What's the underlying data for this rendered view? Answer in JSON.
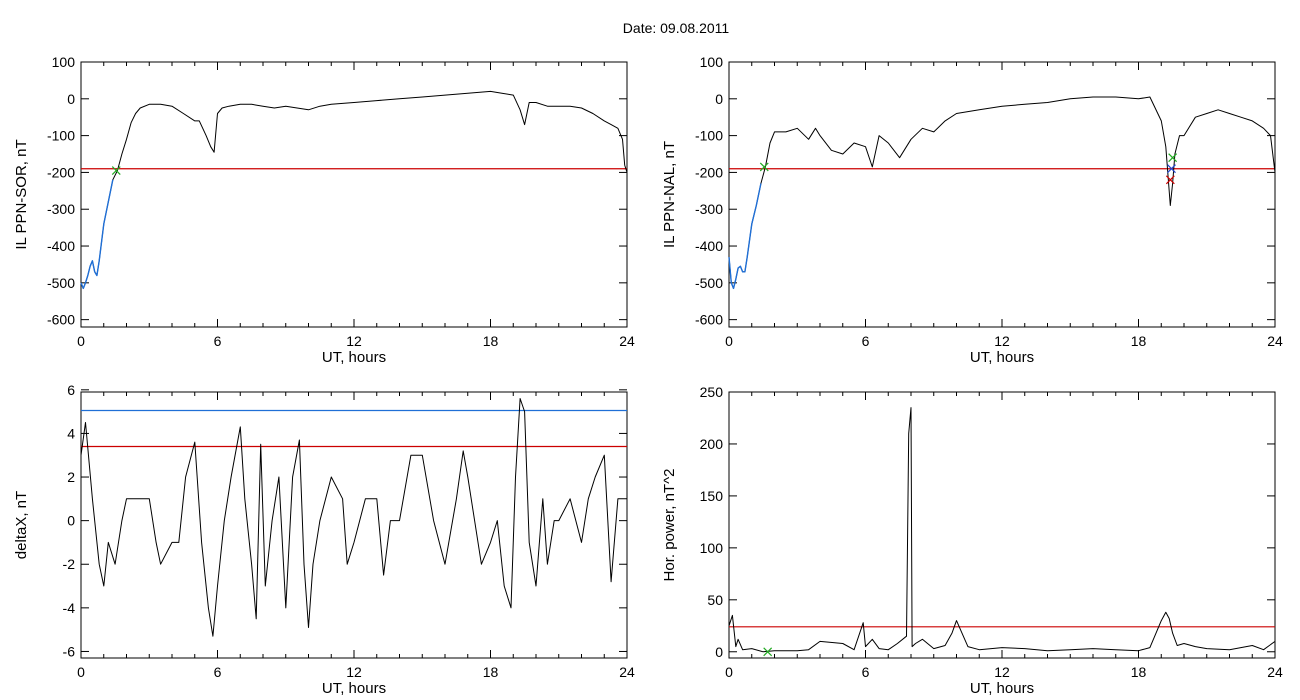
{
  "figure_title": "Date:  09.08.2011",
  "colors": {
    "axis": "#000000",
    "data": "#000000",
    "threshold_red": "#cc0000",
    "threshold_blue": "#1f6fd6",
    "marker_green": "#22aa22",
    "marker_red": "#cc0000",
    "marker_blue": "#2244cc"
  },
  "chart_data": [
    {
      "type": "line",
      "panel": "top-left",
      "xlabel": "UT, hours",
      "ylabel": "IL PPN-SOR, nT",
      "xlim": [
        0,
        24
      ],
      "ylim": [
        -620,
        100
      ],
      "xticks": [
        0,
        6,
        12,
        18,
        24
      ],
      "yticks": [
        100,
        0,
        -100,
        -200,
        -300,
        -400,
        -500,
        -600
      ],
      "series": [
        {
          "x": [
            0,
            0.1,
            0.2,
            0.3,
            0.4,
            0.5,
            0.6,
            0.7,
            0.8,
            1.0,
            1.2,
            1.4,
            1.6,
            1.8,
            2.0,
            2.2,
            2.4,
            2.6,
            3,
            3.5,
            4,
            4.5,
            5,
            5.2,
            5.5,
            5.7,
            5.85,
            6,
            6.2,
            6.5,
            7,
            7.5,
            8,
            8.5,
            9,
            9.5,
            10,
            10.5,
            11,
            12,
            13,
            14,
            15,
            16,
            17,
            18,
            18.5,
            19,
            19.3,
            19.5,
            19.7,
            20,
            20.5,
            21,
            21.5,
            22,
            22.5,
            23,
            23.3,
            23.6,
            23.8,
            23.9,
            24
          ],
          "y": [
            -500,
            -515,
            -500,
            -480,
            -455,
            -440,
            -470,
            -480,
            -440,
            -340,
            -280,
            -220,
            -195,
            -150,
            -110,
            -65,
            -40,
            -25,
            -15,
            -15,
            -20,
            -40,
            -60,
            -60,
            -100,
            -130,
            -145,
            -40,
            -25,
            -20,
            -15,
            -15,
            -20,
            -25,
            -20,
            -25,
            -30,
            -20,
            -15,
            -10,
            -5,
            0,
            5,
            10,
            15,
            20,
            15,
            10,
            -30,
            -70,
            -10,
            -10,
            -20,
            -20,
            -20,
            -25,
            -40,
            -60,
            -70,
            -80,
            -110,
            -180,
            -200
          ]
        },
        {
          "name": "blue-segment",
          "x": [
            0,
            0.1,
            0.2,
            0.3,
            0.4,
            0.5,
            0.6,
            0.7,
            0.8,
            1.0,
            1.2,
            1.4
          ],
          "y": [
            -500,
            -515,
            -500,
            -480,
            -455,
            -440,
            -470,
            -480,
            -440,
            -340,
            -280,
            -220
          ]
        }
      ],
      "threshold_red": -190,
      "markers": [
        {
          "x": 1.55,
          "y": -195,
          "color": "green"
        }
      ]
    },
    {
      "type": "line",
      "panel": "top-right",
      "xlabel": "UT, hours",
      "ylabel": "IL PPN-NAL, nT",
      "xlim": [
        0,
        24
      ],
      "ylim": [
        -620,
        100
      ],
      "xticks": [
        0,
        6,
        12,
        18,
        24
      ],
      "yticks": [
        100,
        0,
        -100,
        -200,
        -300,
        -400,
        -500,
        -600
      ],
      "series": [
        {
          "x": [
            0,
            0.1,
            0.2,
            0.3,
            0.4,
            0.5,
            0.6,
            0.7,
            0.8,
            1.0,
            1.2,
            1.4,
            1.6,
            1.8,
            2.0,
            2.5,
            3,
            3.5,
            3.8,
            4,
            4.5,
            5,
            5.5,
            6,
            6.3,
            6.6,
            7,
            7.5,
            8,
            8.5,
            9,
            9.5,
            10,
            11,
            12,
            13,
            14,
            15,
            16,
            17,
            18,
            18.5,
            19,
            19.2,
            19.4,
            19.5,
            19.6,
            19.8,
            20,
            20.5,
            21,
            21.5,
            22,
            22.5,
            23,
            23.5,
            23.8,
            24
          ],
          "y": [
            -430,
            -500,
            -515,
            -490,
            -460,
            -455,
            -470,
            -470,
            -430,
            -340,
            -290,
            -230,
            -185,
            -120,
            -90,
            -90,
            -80,
            -110,
            -80,
            -100,
            -140,
            -150,
            -120,
            -130,
            -185,
            -100,
            -120,
            -160,
            -110,
            -80,
            -90,
            -60,
            -40,
            -30,
            -20,
            -15,
            -10,
            0,
            5,
            5,
            0,
            5,
            -60,
            -130,
            -290,
            -230,
            -150,
            -100,
            -100,
            -50,
            -40,
            -30,
            -40,
            -50,
            -60,
            -80,
            -100,
            -200
          ]
        },
        {
          "name": "blue-segment",
          "x": [
            0,
            0.1,
            0.2,
            0.3,
            0.4,
            0.5,
            0.6,
            0.7,
            0.8,
            1.0,
            1.2,
            1.4
          ],
          "y": [
            -430,
            -500,
            -515,
            -490,
            -460,
            -455,
            -470,
            -470,
            -430,
            -340,
            -290,
            -230
          ]
        }
      ],
      "threshold_red": -190,
      "markers": [
        {
          "x": 1.55,
          "y": -185,
          "color": "green"
        },
        {
          "x": 19.5,
          "y": -160,
          "color": "green"
        },
        {
          "x": 19.4,
          "y": -220,
          "color": "red"
        },
        {
          "x": 19.45,
          "y": -190,
          "color": "blue"
        }
      ]
    },
    {
      "type": "line",
      "panel": "bottom-left",
      "xlabel": "UT, hours",
      "ylabel": "deltaX, nT",
      "xlim": [
        0,
        24
      ],
      "ylim": [
        -6.3,
        5.9
      ],
      "xticks": [
        0,
        6,
        12,
        18,
        24
      ],
      "yticks": [
        6,
        4,
        2,
        0,
        -2,
        -4,
        -6
      ],
      "series": [
        {
          "x": [
            0,
            0.2,
            0.5,
            0.8,
            1.0,
            1.2,
            1.5,
            1.8,
            2.0,
            2.5,
            3,
            3.3,
            3.5,
            4,
            4.3,
            4.6,
            5,
            5.3,
            5.6,
            5.8,
            6,
            6.3,
            6.6,
            7,
            7.2,
            7.5,
            7.7,
            7.9,
            8.1,
            8.4,
            8.7,
            9,
            9.3,
            9.6,
            9.8,
            10,
            10.2,
            10.5,
            11,
            11.5,
            11.7,
            12,
            12.5,
            13,
            13.3,
            13.6,
            14,
            14.5,
            15,
            15.5,
            16,
            16.5,
            16.8,
            17,
            17.3,
            17.6,
            18,
            18.3,
            18.6,
            18.9,
            19.1,
            19.3,
            19.5,
            19.7,
            20,
            20.3,
            20.5,
            20.8,
            21,
            21.5,
            22,
            22.3,
            22.6,
            23,
            23.3,
            23.6,
            24
          ],
          "y": [
            3,
            4.5,
            1,
            -2,
            -3,
            -1,
            -2,
            0,
            1,
            1,
            1,
            -1,
            -2,
            -1,
            -1,
            2,
            3.6,
            -1,
            -4,
            -5.3,
            -3,
            0,
            2,
            4.3,
            1,
            -2,
            -4.5,
            3.5,
            -3,
            0,
            2,
            -4,
            2,
            3.7,
            -2,
            -4.9,
            -2,
            0,
            2,
            1,
            -2,
            -1,
            1,
            1,
            -2.5,
            0,
            0,
            3,
            3,
            0,
            -2,
            1,
            3.2,
            2,
            0,
            -2,
            -1,
            0,
            -3,
            -4,
            2,
            5.6,
            5,
            -1,
            -3,
            1,
            -2,
            0,
            0,
            1,
            -1,
            1,
            2,
            3,
            -2.8,
            1,
            1
          ]
        }
      ],
      "threshold_red": 3.4,
      "threshold_blue": 5.05
    },
    {
      "type": "line",
      "panel": "bottom-right",
      "xlabel": "UT, hours",
      "ylabel": "Hor. power, nT^2",
      "xlim": [
        0,
        24
      ],
      "ylim": [
        -6,
        250
      ],
      "xticks": [
        0,
        6,
        12,
        18,
        24
      ],
      "yticks": [
        250,
        200,
        150,
        100,
        50,
        0
      ],
      "series": [
        {
          "x": [
            0,
            0.15,
            0.3,
            0.4,
            0.6,
            1,
            1.5,
            2,
            3,
            3.5,
            4,
            5,
            5.5,
            5.9,
            6,
            6.3,
            6.6,
            7,
            7.4,
            7.8,
            7.9,
            8,
            8.05,
            8.2,
            8.5,
            9,
            9.5,
            9.8,
            10,
            10.5,
            11,
            12,
            13,
            14,
            15,
            16,
            17,
            18,
            18.5,
            19,
            19.2,
            19.35,
            19.5,
            19.7,
            20,
            20.5,
            21,
            22,
            23,
            23.5,
            24
          ],
          "y": [
            25,
            35,
            5,
            12,
            2,
            3,
            0,
            1,
            1,
            2,
            10,
            8,
            2,
            28,
            5,
            12,
            3,
            2,
            8,
            15,
            210,
            235,
            5,
            8,
            12,
            3,
            6,
            18,
            30,
            5,
            2,
            4,
            3,
            1,
            2,
            3,
            2,
            1,
            4,
            30,
            38,
            32,
            18,
            6,
            8,
            5,
            3,
            2,
            6,
            2,
            10
          ]
        }
      ],
      "threshold_red": 24,
      "markers": [
        {
          "x": 1.7,
          "y": 0,
          "color": "green"
        }
      ]
    }
  ]
}
